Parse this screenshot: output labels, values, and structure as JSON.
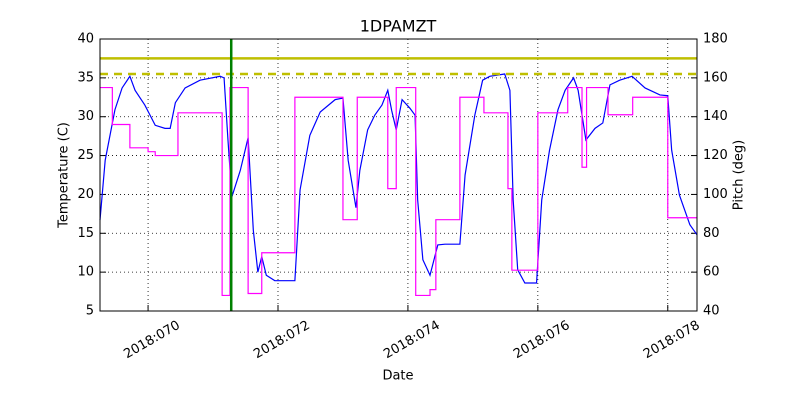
{
  "chart_data": {
    "type": "line",
    "title": "1DPAMZT",
    "xlabel": "Date",
    "ylabel": "Temperature (C)",
    "y2label": "Pitch (deg)",
    "y2color": "#ff00ff",
    "xlim": [
      69.26,
      78.45
    ],
    "xticks": [
      {
        "value": 70,
        "label": "2018:070"
      },
      {
        "value": 72,
        "label": "2018:072"
      },
      {
        "value": 74,
        "label": "2018:074"
      },
      {
        "value": 76,
        "label": "2018:076"
      },
      {
        "value": 78,
        "label": "2018:078"
      }
    ],
    "ylim": [
      5,
      40
    ],
    "yticks": [
      5,
      10,
      15,
      20,
      25,
      30,
      35,
      40
    ],
    "y2lim": [
      40,
      180
    ],
    "y2ticks": [
      40,
      60,
      80,
      100,
      120,
      140,
      160,
      180
    ],
    "grid": true,
    "hlines": [
      {
        "value": 37.5,
        "color": "#bfbf00",
        "style": "solid"
      },
      {
        "value": 35.5,
        "color": "#bfbf00",
        "style": "dashed"
      }
    ],
    "vlines": [
      {
        "value": 71.28,
        "color": "#008000",
        "style": "solid"
      }
    ],
    "series": [
      {
        "color": "#0000ff",
        "x": [
          69.26,
          69.34,
          69.49,
          69.6,
          69.72,
          69.8,
          69.95,
          70.03,
          70.11,
          70.26,
          70.34,
          70.42,
          70.57,
          70.8,
          71.11,
          71.17,
          71.23,
          71.29,
          71.42,
          71.54,
          71.62,
          71.69,
          71.75,
          71.82,
          71.95,
          72.26,
          72.34,
          72.49,
          72.65,
          72.88,
          73.0,
          73.08,
          73.2,
          73.26,
          73.38,
          73.49,
          73.6,
          73.69,
          73.75,
          73.82,
          73.91,
          74.03,
          74.11,
          74.15,
          74.23,
          74.34,
          74.46,
          74.57,
          74.8,
          74.88,
          75.03,
          75.15,
          75.26,
          75.49,
          75.57,
          75.62,
          75.69,
          75.8,
          75.98,
          76.06,
          76.18,
          76.31,
          76.42,
          76.55,
          76.62,
          76.74,
          76.88,
          77.0,
          77.11,
          77.26,
          77.45,
          77.65,
          77.88,
          78.0,
          78.06,
          78.18,
          78.34,
          78.45
        ],
        "values": [
          16.7,
          24.4,
          30.9,
          33.7,
          35.2,
          33.4,
          31.5,
          30.2,
          28.9,
          28.5,
          28.5,
          31.8,
          33.7,
          34.7,
          35.2,
          35.0,
          27.0,
          19.7,
          23.1,
          27.3,
          15.4,
          10.0,
          12.0,
          9.6,
          8.9,
          8.9,
          20.6,
          27.6,
          30.6,
          32.2,
          32.4,
          24.4,
          18.3,
          23.1,
          28.3,
          30.2,
          31.5,
          33.4,
          30.8,
          28.3,
          32.2,
          31.1,
          30.2,
          19.3,
          11.6,
          9.6,
          13.5,
          13.6,
          13.6,
          22.5,
          30.2,
          34.7,
          35.2,
          35.5,
          33.4,
          19.3,
          10.3,
          8.6,
          8.6,
          19.3,
          25.7,
          30.9,
          33.4,
          35.0,
          33.4,
          27.0,
          28.5,
          29.2,
          34.1,
          34.7,
          35.2,
          33.7,
          32.8,
          32.7,
          25.7,
          19.9,
          16.1,
          14.8
        ]
      },
      {
        "color": "#ff00ff",
        "axis": "y2",
        "x": [
          69.26,
          69.45,
          69.45,
          69.72,
          69.72,
          70,
          70,
          70.11,
          70.11,
          70.46,
          70.46,
          71.14,
          71.14,
          71.26,
          71.26,
          71.54,
          71.54,
          71.75,
          71.75,
          72.26,
          72.26,
          73,
          73,
          73.22,
          73.22,
          73.69,
          73.69,
          73.82,
          73.82,
          74.12,
          74.12,
          74.34,
          74.34,
          74.43,
          74.43,
          74.8,
          74.8,
          75.17,
          75.17,
          75.54,
          75.54,
          75.6,
          75.6,
          76,
          76,
          76.46,
          76.46,
          76.68,
          76.68,
          76.75,
          76.75,
          77.08,
          77.08,
          77.46,
          77.46,
          78,
          78,
          78.45
        ],
        "values": [
          155,
          155,
          136,
          136,
          124,
          124,
          122,
          122,
          120,
          120,
          142,
          142,
          48,
          48,
          155,
          155,
          49,
          49,
          70,
          70,
          150,
          150,
          87,
          87,
          150,
          150,
          103,
          103,
          155,
          155,
          48,
          48,
          51,
          51,
          87,
          87,
          150,
          150,
          142,
          142,
          103,
          103,
          61,
          61,
          142,
          142,
          155,
          155,
          114,
          114,
          155,
          155,
          141,
          141,
          150,
          150,
          88,
          88
        ]
      }
    ]
  }
}
